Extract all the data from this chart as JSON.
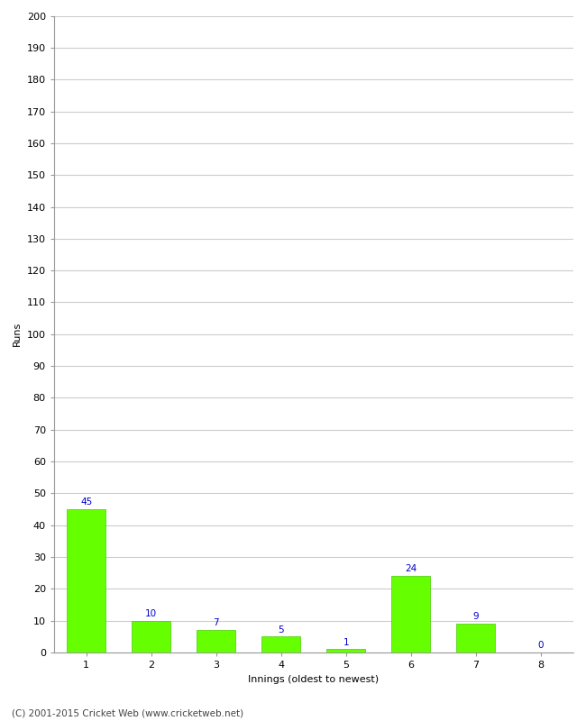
{
  "xlabel": "Innings (oldest to newest)",
  "ylabel": "Runs",
  "categories": [
    "1",
    "2",
    "3",
    "4",
    "5",
    "6",
    "7",
    "8"
  ],
  "values": [
    45,
    10,
    7,
    5,
    1,
    24,
    9,
    0
  ],
  "bar_color": "#66ff00",
  "bar_edge_color": "#44cc00",
  "value_label_color": "#0000cc",
  "ylim": [
    0,
    200
  ],
  "yticks": [
    0,
    10,
    20,
    30,
    40,
    50,
    60,
    70,
    80,
    90,
    100,
    110,
    120,
    130,
    140,
    150,
    160,
    170,
    180,
    190,
    200
  ],
  "grid_color": "#cccccc",
  "background_color": "#ffffff",
  "footer_text": "(C) 2001-2015 Cricket Web (www.cricketweb.net)",
  "value_fontsize": 7.5,
  "axis_label_fontsize": 8,
  "tick_label_fontsize": 8,
  "footer_fontsize": 7.5
}
